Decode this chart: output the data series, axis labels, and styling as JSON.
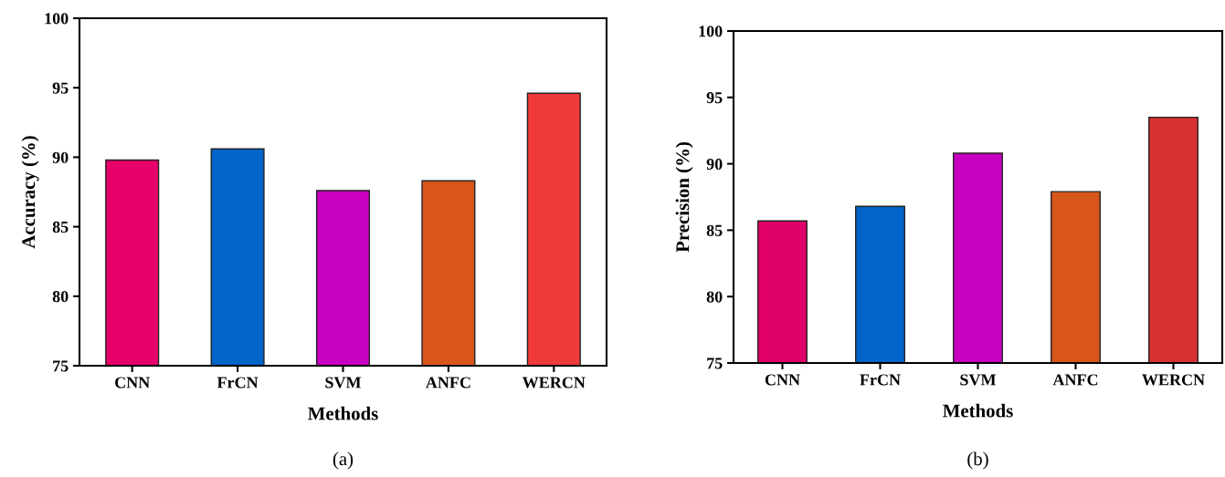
{
  "chart_data": [
    {
      "type": "bar",
      "xlabel": "Methods",
      "ylabel": "Accuracy (%)",
      "annotations": [
        "(a)"
      ],
      "categories": [
        "CNN",
        "FrCN",
        "SVM",
        "ANFC",
        "WERCN"
      ],
      "values": [
        89.8,
        90.6,
        87.6,
        88.3,
        94.6
      ],
      "colors": [
        "#e8006a",
        "#0064c8",
        "#c800c0",
        "#d8561a",
        "#f03a3a"
      ],
      "ylim": [
        75,
        100
      ],
      "yticks": [
        75,
        80,
        85,
        90,
        95,
        100
      ],
      "grid": false
    },
    {
      "type": "bar",
      "xlabel": "Methods",
      "ylabel": "Precision (%)",
      "annotations": [
        "(b)"
      ],
      "categories": [
        "CNN",
        "FrCN",
        "SVM",
        "ANFC",
        "WERCN"
      ],
      "values": [
        85.7,
        86.8,
        90.8,
        87.9,
        93.5
      ],
      "colors": [
        "#e0006a",
        "#0064c8",
        "#c800c0",
        "#d8561a",
        "#d83030"
      ],
      "ylim": [
        75,
        100
      ],
      "yticks": [
        75,
        80,
        85,
        90,
        95,
        100
      ],
      "grid": false
    }
  ]
}
